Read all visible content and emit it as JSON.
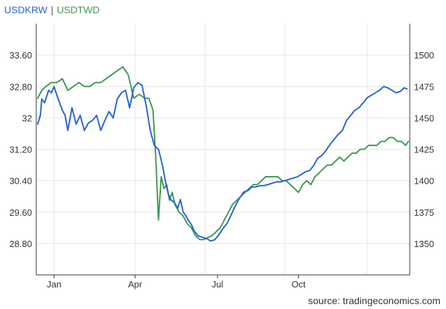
{
  "legend": {
    "series_1": "USDKRW",
    "separator": "|",
    "series_2": "USDTWD"
  },
  "source": "source: tradingeconomics.com",
  "colors": {
    "usdkrw": "#2962d9",
    "usdtwd": "#3f9a52",
    "grid": "#e6e6e6",
    "axis": "#333333"
  },
  "chart_data": {
    "type": "line",
    "title": "",
    "xlabel": "",
    "x_ticks": [
      "Jan",
      "Apr",
      "Jul",
      "Oct"
    ],
    "left_axis": {
      "series": "USDTWD",
      "ticks": [
        "33.60",
        "32.80",
        "32",
        "31.20",
        "30.40",
        "29.60",
        "28.80"
      ],
      "ylim": [
        28.0,
        34.4
      ]
    },
    "right_axis": {
      "series": "USDKRW",
      "ticks": [
        "1500",
        "1475",
        "1450",
        "1425",
        "1400",
        "1375",
        "1350"
      ],
      "ylim": [
        1325,
        1525
      ]
    },
    "grid": true,
    "legend_position": "top-left",
    "series": [
      {
        "name": "USDKRW",
        "axis": "right",
        "color": "#2962d9",
        "x": [
          0,
          2,
          3,
          5,
          8,
          10,
          12,
          14,
          16,
          18,
          20,
          22,
          25,
          28,
          31,
          34,
          37,
          40,
          43,
          46,
          49,
          52,
          55,
          58,
          61,
          64,
          67,
          70,
          73,
          76,
          79,
          82,
          85,
          88,
          91,
          93,
          95,
          97,
          100,
          102,
          104,
          106,
          108,
          110,
          112,
          114,
          117,
          120,
          123,
          126,
          129,
          132,
          135,
          138,
          141,
          144,
          147,
          150,
          153,
          156,
          159,
          162,
          165,
          168,
          171,
          174,
          177,
          180,
          183,
          186,
          189,
          192,
          195,
          198,
          201,
          204,
          207,
          210,
          213,
          216,
          219,
          222,
          225,
          228,
          231,
          234,
          237,
          240,
          243,
          246,
          249,
          252,
          255,
          258,
          261,
          264,
          267,
          269
        ],
        "values": [
          1445,
          1452,
          1465,
          1462,
          1472,
          1470,
          1475,
          1468,
          1462,
          1456,
          1452,
          1440,
          1458,
          1445,
          1452,
          1440,
          1446,
          1448,
          1452,
          1440,
          1448,
          1455,
          1450,
          1465,
          1470,
          1472,
          1458,
          1474,
          1478,
          1476,
          1460,
          1440,
          1428,
          1425,
          1412,
          1400,
          1390,
          1385,
          1382,
          1378,
          1385,
          1375,
          1372,
          1368,
          1365,
          1360,
          1356,
          1355,
          1354,
          1352,
          1353,
          1357,
          1362,
          1366,
          1373,
          1380,
          1386,
          1391,
          1392,
          1395,
          1395,
          1396,
          1396,
          1397,
          1398,
          1399,
          1399,
          1400,
          1401,
          1402,
          1403,
          1405,
          1407,
          1408,
          1412,
          1418,
          1420,
          1424,
          1429,
          1433,
          1437,
          1440,
          1448,
          1452,
          1456,
          1458,
          1462,
          1466,
          1468,
          1470,
          1472,
          1475,
          1474,
          1472,
          1470,
          1471,
          1474,
          1473
        ]
      },
      {
        "name": "USDTWD",
        "axis": "left",
        "color": "#3f9a52",
        "x": [
          0,
          3,
          6,
          10,
          14,
          18,
          22,
          26,
          30,
          34,
          38,
          42,
          46,
          50,
          54,
          58,
          62,
          66,
          70,
          74,
          78,
          81,
          84,
          86,
          88,
          90,
          92,
          94,
          96,
          98,
          100,
          103,
          106,
          109,
          112,
          115,
          118,
          121,
          124,
          127,
          130,
          133,
          136,
          139,
          142,
          145,
          148,
          151,
          154,
          157,
          160,
          163,
          166,
          169,
          172,
          175,
          178,
          181,
          184,
          187,
          190,
          193,
          196,
          199,
          202,
          205,
          208,
          211,
          214,
          217,
          220,
          223,
          226,
          229,
          232,
          235,
          238,
          241,
          244,
          247,
          250,
          253,
          256,
          259,
          262,
          265,
          268,
          270
        ],
        "values": [
          32.5,
          32.7,
          32.8,
          32.9,
          32.9,
          33.0,
          32.7,
          32.8,
          32.9,
          32.8,
          32.8,
          32.9,
          32.9,
          33.0,
          33.1,
          33.2,
          33.3,
          33.1,
          32.5,
          32.6,
          32.5,
          32.5,
          32.2,
          31.0,
          29.4,
          30.5,
          30.2,
          30.3,
          29.9,
          30.1,
          29.8,
          29.6,
          29.5,
          29.3,
          29.2,
          29.0,
          28.9,
          28.9,
          28.95,
          29.0,
          29.1,
          29.2,
          29.4,
          29.6,
          29.8,
          29.9,
          30.0,
          30.1,
          30.2,
          30.3,
          30.3,
          30.4,
          30.5,
          30.5,
          30.5,
          30.5,
          30.4,
          30.4,
          30.3,
          30.2,
          30.1,
          30.3,
          30.4,
          30.3,
          30.5,
          30.6,
          30.7,
          30.8,
          30.8,
          30.9,
          31.0,
          30.9,
          31.0,
          31.1,
          31.1,
          31.2,
          31.2,
          31.3,
          31.3,
          31.3,
          31.4,
          31.4,
          31.5,
          31.5,
          31.4,
          31.4,
          31.3,
          31.4
        ]
      }
    ]
  }
}
